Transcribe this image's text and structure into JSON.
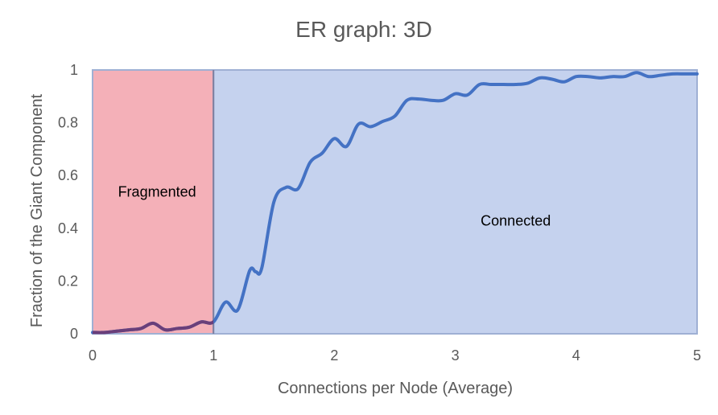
{
  "chart_data": {
    "type": "line",
    "title": "ER graph: 3D",
    "xlabel": "Connections per Node (Average)",
    "ylabel": "Fraction of the Giant Component",
    "xlim": [
      0,
      5
    ],
    "ylim": [
      0,
      1
    ],
    "x_ticks": [
      "0",
      "1",
      "2",
      "3",
      "4",
      "5"
    ],
    "y_ticks": [
      "0",
      "0.2",
      "0.4",
      "0.6",
      "0.8",
      "1"
    ],
    "grid": false,
    "legend": "none",
    "regions": [
      {
        "label": "Fragmented",
        "x_start": 0,
        "x_end": 1,
        "color": "#f4b0b8"
      },
      {
        "label": "Connected",
        "x_start": 1,
        "x_end": 5,
        "color": "#c5d2ee"
      }
    ],
    "series": [
      {
        "color": "#4472c4",
        "x": [
          0,
          0.1,
          0.2,
          0.3,
          0.4,
          0.5,
          0.6,
          0.7,
          0.8,
          0.9,
          1.0,
          1.1,
          1.2,
          1.3,
          1.35,
          1.4,
          1.5,
          1.6,
          1.7,
          1.8,
          1.9,
          2.0,
          2.1,
          2.2,
          2.3,
          2.4,
          2.5,
          2.6,
          2.7,
          2.8,
          2.9,
          3.0,
          3.1,
          3.2,
          3.3,
          3.4,
          3.5,
          3.6,
          3.7,
          3.8,
          3.9,
          4.0,
          4.1,
          4.2,
          4.3,
          4.4,
          4.5,
          4.6,
          4.7,
          4.8,
          4.9,
          5.0
        ],
        "y": [
          0.005,
          0.005,
          0.01,
          0.015,
          0.02,
          0.04,
          0.015,
          0.02,
          0.025,
          0.045,
          0.045,
          0.12,
          0.09,
          0.24,
          0.235,
          0.25,
          0.5,
          0.555,
          0.55,
          0.65,
          0.685,
          0.74,
          0.71,
          0.795,
          0.785,
          0.805,
          0.825,
          0.885,
          0.89,
          0.885,
          0.885,
          0.91,
          0.905,
          0.945,
          0.945,
          0.945,
          0.945,
          0.95,
          0.97,
          0.965,
          0.955,
          0.975,
          0.975,
          0.97,
          0.975,
          0.975,
          0.99,
          0.975,
          0.98,
          0.985,
          0.985,
          0.985
        ]
      }
    ]
  }
}
